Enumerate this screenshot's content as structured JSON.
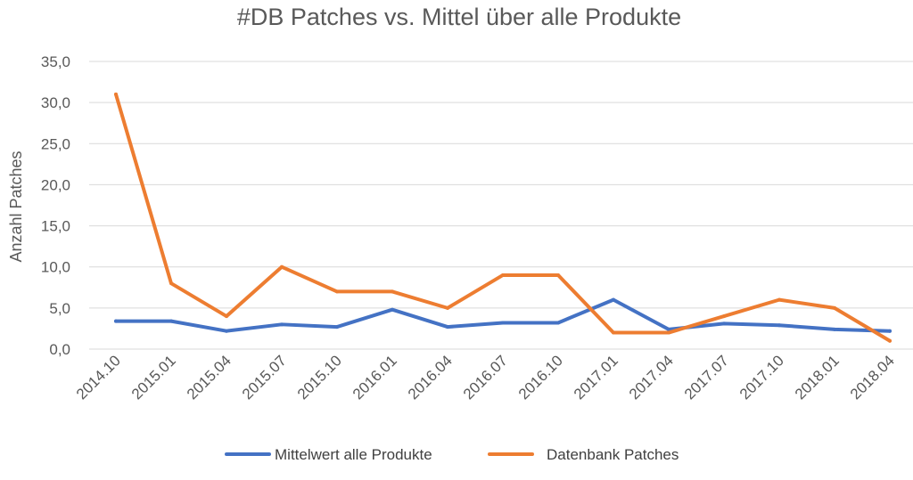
{
  "chart_data": {
    "type": "line",
    "title": "#DB Patches vs. Mittel über alle Produkte",
    "xlabel": "",
    "ylabel": "Anzahl Patches",
    "ylim": [
      0,
      35
    ],
    "y_ticks": [
      "0,0",
      "5,0",
      "10,0",
      "15,0",
      "20,0",
      "25,0",
      "30,0",
      "35,0"
    ],
    "grid": "horizontal",
    "legend_position": "bottom",
    "categories": [
      "2014.10",
      "2015.01",
      "2015.04",
      "2015.07",
      "2015.10",
      "2016.01",
      "2016.04",
      "2016.07",
      "2016.10",
      "2017.01",
      "2017.04",
      "2017.07",
      "2017.10",
      "2018.01",
      "2018.04"
    ],
    "series": [
      {
        "name": "Mittelwert alle Produkte",
        "color": "#4472c4",
        "values": [
          3.4,
          3.4,
          2.2,
          3.0,
          2.7,
          4.8,
          2.7,
          3.2,
          3.2,
          6.0,
          2.4,
          3.1,
          2.9,
          2.4,
          2.2
        ]
      },
      {
        "name": "Datenbank Patches",
        "color": "#ed7d31",
        "values": [
          31,
          8,
          4,
          10,
          7,
          7,
          5,
          9,
          9,
          2,
          2,
          4,
          6,
          5,
          1
        ]
      }
    ]
  }
}
